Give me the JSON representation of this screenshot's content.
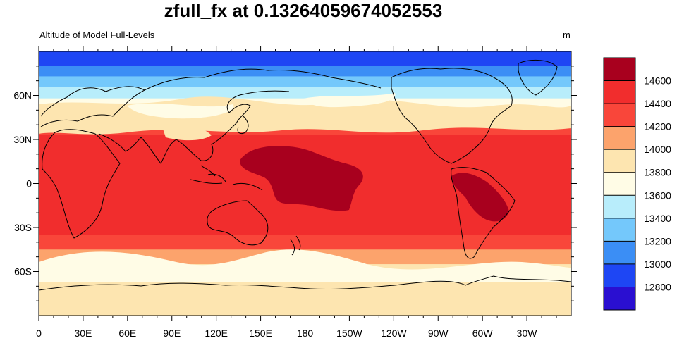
{
  "title": "zfull_fx at 0.13264059674052553",
  "left_label": "Altitude of Model Full-Levels",
  "units_label": "m",
  "chart_data": {
    "type": "heatmap",
    "projection": "cylindrical-equidistant",
    "xlim": [
      0,
      360
    ],
    "ylim": [
      -90,
      90
    ],
    "lon_ticks": [
      {
        "value": 0,
        "label": "0"
      },
      {
        "value": 30,
        "label": "30E"
      },
      {
        "value": 60,
        "label": "60E"
      },
      {
        "value": 90,
        "label": "90E"
      },
      {
        "value": 120,
        "label": "120E"
      },
      {
        "value": 150,
        "label": "150E"
      },
      {
        "value": 180,
        "label": "180"
      },
      {
        "value": 210,
        "label": "150W"
      },
      {
        "value": 240,
        "label": "120W"
      },
      {
        "value": 270,
        "label": "90W"
      },
      {
        "value": 300,
        "label": "60W"
      },
      {
        "value": 330,
        "label": "30W"
      }
    ],
    "lat_ticks": [
      {
        "value": 60,
        "label": "60N"
      },
      {
        "value": 30,
        "label": "30N"
      },
      {
        "value": 0,
        "label": "0"
      },
      {
        "value": -30,
        "label": "30S"
      },
      {
        "value": -60,
        "label": "60S"
      }
    ],
    "colorbar": {
      "levels": [
        12800,
        13000,
        13200,
        13400,
        13600,
        13800,
        14000,
        14200,
        14400,
        14600
      ],
      "labels": [
        "12800",
        "13000",
        "13200",
        "13400",
        "13600",
        "13800",
        "14000",
        "14200",
        "14400",
        "14600"
      ],
      "colors": [
        "#2a0fd1",
        "#1e46f4",
        "#3b8ef5",
        "#74c8fb",
        "#b8edfb",
        "#fffce6",
        "#fde5b0",
        "#fca36c",
        "#f9463a",
        "#f12d2d",
        "#a8001e"
      ]
    },
    "bands": [
      {
        "lat_from": 90,
        "lat_to": 80,
        "value": 12900
      },
      {
        "lat_from": 80,
        "lat_to": 73,
        "value": 13100
      },
      {
        "lat_from": 73,
        "lat_to": 66,
        "value": 13300
      },
      {
        "lat_from": 66,
        "lat_to": 58,
        "value": 13500
      },
      {
        "lat_from": 58,
        "lat_to": 48,
        "value": 13700
      },
      {
        "lat_from": 48,
        "lat_to": 40,
        "value": 13900
      },
      {
        "lat_from": 40,
        "lat_to": 33,
        "value": 14300
      },
      {
        "lat_from": 33,
        "lat_to": -35,
        "value": 14500
      },
      {
        "lat_from": -35,
        "lat_to": -45,
        "value": 14300
      },
      {
        "lat_from": -45,
        "lat_to": -55,
        "value": 14100
      },
      {
        "lat_from": -55,
        "lat_to": -65,
        "value": 13900
      },
      {
        "lat_from": -65,
        "lat_to": -90,
        "value": 13900
      }
    ],
    "max_regions": [
      {
        "lon_range": [
          145,
          240
        ],
        "lat_range": [
          -18,
          27
        ],
        "value": 14700
      },
      {
        "lon_range": [
          290,
          325
        ],
        "lat_range": [
          -25,
          10
        ],
        "value": 14700
      }
    ]
  }
}
